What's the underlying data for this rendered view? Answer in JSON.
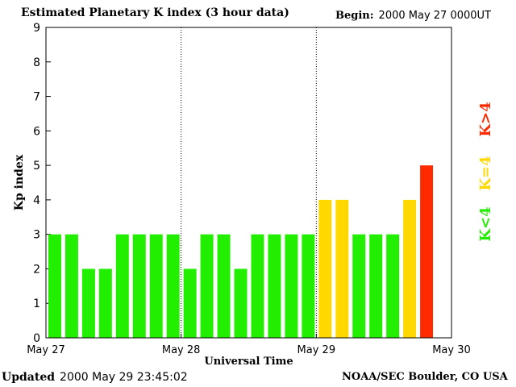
{
  "header": {
    "title": "Estimated Planetary K index (3 hour data)",
    "begin_label": "Begin:",
    "begin_value": "2000 May 27 0000UT"
  },
  "footer": {
    "updated_label": "Updated",
    "updated_value": "2000 May 29 23:45:02",
    "credit": "NOAA/SEC Boulder, CO USA"
  },
  "legend": [
    {
      "label": "K<4",
      "color": "#22ee00"
    },
    {
      "label": "K=4",
      "color": "#ffd800"
    },
    {
      "label": "K>4",
      "color": "#ff2a00"
    }
  ],
  "chart_data": {
    "type": "bar",
    "title": "Estimated Planetary K index (3 hour data)",
    "xlabel": "Universal Time",
    "ylabel": "Kp index",
    "ylim": [
      0,
      9
    ],
    "yticks": [
      0,
      1,
      2,
      3,
      4,
      5,
      6,
      7,
      8,
      9
    ],
    "xticks": [
      "May 27",
      "May 28",
      "May 29",
      "May 30"
    ],
    "day_dividers": [
      "May 28",
      "May 29"
    ],
    "interval_hours": 3,
    "values": [
      3,
      3,
      2,
      2,
      3,
      3,
      3,
      3,
      2,
      3,
      3,
      2,
      3,
      3,
      3,
      3,
      4,
      4,
      3,
      3,
      3,
      4,
      5
    ],
    "colors": {
      "below4": "#22ee00",
      "equal4": "#ffd800",
      "above4": "#ff2a00"
    }
  }
}
